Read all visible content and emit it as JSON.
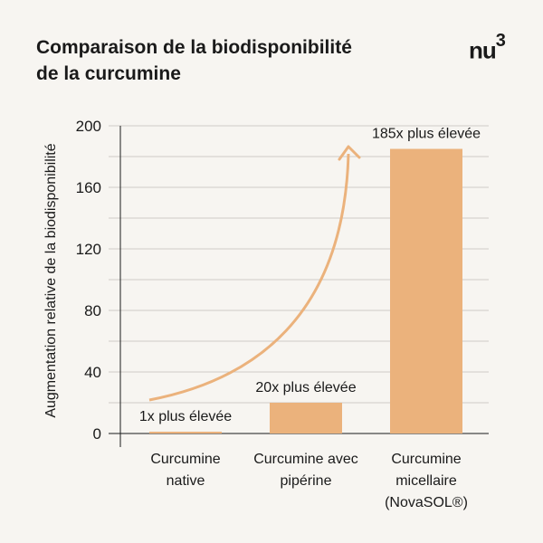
{
  "header": {
    "title_line1": "Comparaison de la biodisponibilité",
    "title_line2": "de la curcumine",
    "logo_text": "nu",
    "logo_sup": "3"
  },
  "chart_data": {
    "type": "bar",
    "title": "Comparaison de la biodisponibilité de la curcumine",
    "xlabel": "",
    "ylabel": "Augmentation relative de la biodisponibilité",
    "ylim": [
      0,
      200
    ],
    "yticks": [
      0,
      40,
      80,
      120,
      160,
      200
    ],
    "grid": true,
    "categories": [
      [
        "Curcumine",
        "native"
      ],
      [
        "Curcumine avec",
        "pipérine"
      ],
      [
        "Curcumine",
        "micellaire",
        "(NovaSOL®)"
      ]
    ],
    "values": [
      1,
      20,
      185
    ],
    "data_labels": [
      "1x plus élevée",
      "20x plus élevée",
      "185x plus élevée"
    ],
    "bar_color": "#ebb27c",
    "annotation": "curved-arrow-increase"
  }
}
